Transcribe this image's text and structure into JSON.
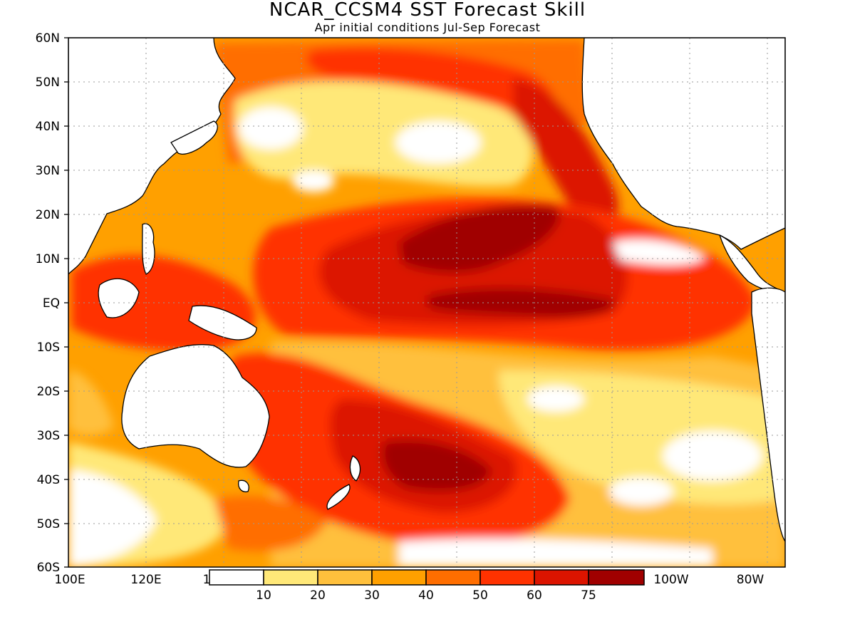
{
  "header": {
    "title": "NCAR_CCSM4 SST Forecast Skill",
    "subtitle": "Apr initial conditions  Jul-Sep Forecast"
  },
  "axes": {
    "lat_labels": [
      "60N",
      "50N",
      "40N",
      "30N",
      "20N",
      "10N",
      "EQ",
      "10S",
      "20S",
      "30S",
      "40S",
      "50S",
      "60S"
    ],
    "lon_labels": [
      "100E",
      "120E",
      "1",
      "100W",
      "80W"
    ]
  },
  "colorbar": {
    "levels": [
      "10",
      "20",
      "30",
      "40",
      "50",
      "60",
      "75"
    ],
    "colors": [
      "#ffffff",
      "#ffe878",
      "#ffc03c",
      "#ffa000",
      "#ff6e00",
      "#ff3200",
      "#dc1400",
      "#a00000"
    ]
  },
  "map": {
    "lat_range": [
      -60,
      60
    ],
    "lon_range": [
      100,
      285
    ],
    "land_color": "#ffffff",
    "coast_color": "#000000",
    "grid": "dotted"
  }
}
